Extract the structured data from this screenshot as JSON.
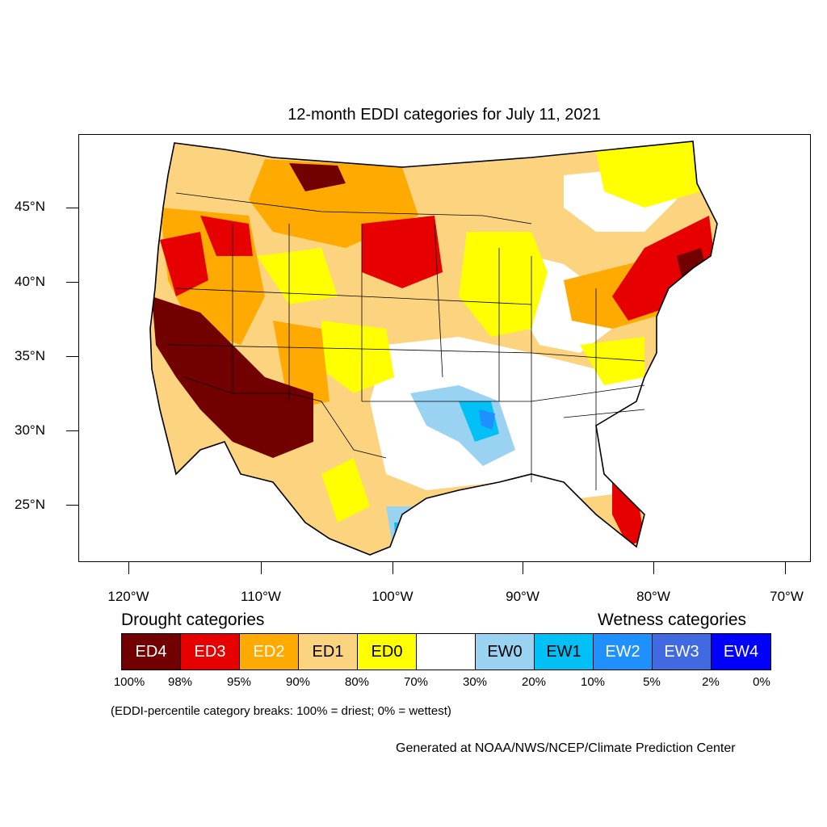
{
  "title": "12-month EDDI categories for July 11, 2021",
  "y_axis": [
    "45°N",
    "40°N",
    "35°N",
    "30°N",
    "25°N"
  ],
  "x_axis": [
    "120°W",
    "110°W",
    "100°W",
    "90°W",
    "80°W",
    "70°W"
  ],
  "legend": {
    "drought_heading": "Drought categories",
    "wetness_heading": "Wetness categories",
    "categories": [
      {
        "label": "ED4",
        "color": "#730000",
        "text_color": "#ffffff"
      },
      {
        "label": "ED3",
        "color": "#e60000",
        "text_color": "#ffffff"
      },
      {
        "label": "ED2",
        "color": "#ffaa00",
        "text_color": "#ffffff"
      },
      {
        "label": "ED1",
        "color": "#fcd37f",
        "text_color": "#000000"
      },
      {
        "label": "ED0",
        "color": "#ffff00",
        "text_color": "#000000"
      },
      {
        "label": "",
        "color": "#ffffff",
        "text_color": "#000000"
      },
      {
        "label": "EW0",
        "color": "#9ad2f2",
        "text_color": "#000000"
      },
      {
        "label": "EW1",
        "color": "#00c0f5",
        "text_color": "#000000"
      },
      {
        "label": "EW2",
        "color": "#1e90ff",
        "text_color": "#ffffff"
      },
      {
        "label": "EW3",
        "color": "#4169e1",
        "text_color": "#ffffff"
      },
      {
        "label": "EW4",
        "color": "#0000ff",
        "text_color": "#ffffff"
      }
    ],
    "breaks": [
      "100%",
      "98%",
      "95%",
      "90%",
      "80%",
      "70%",
      "30%",
      "20%",
      "10%",
      "5%",
      "2%",
      "0%"
    ]
  },
  "note": "(EDDI-percentile category breaks: 100% = driest; 0% = wettest)",
  "credit": "Generated at NOAA/NWS/NCEP/Climate Prediction Center"
}
